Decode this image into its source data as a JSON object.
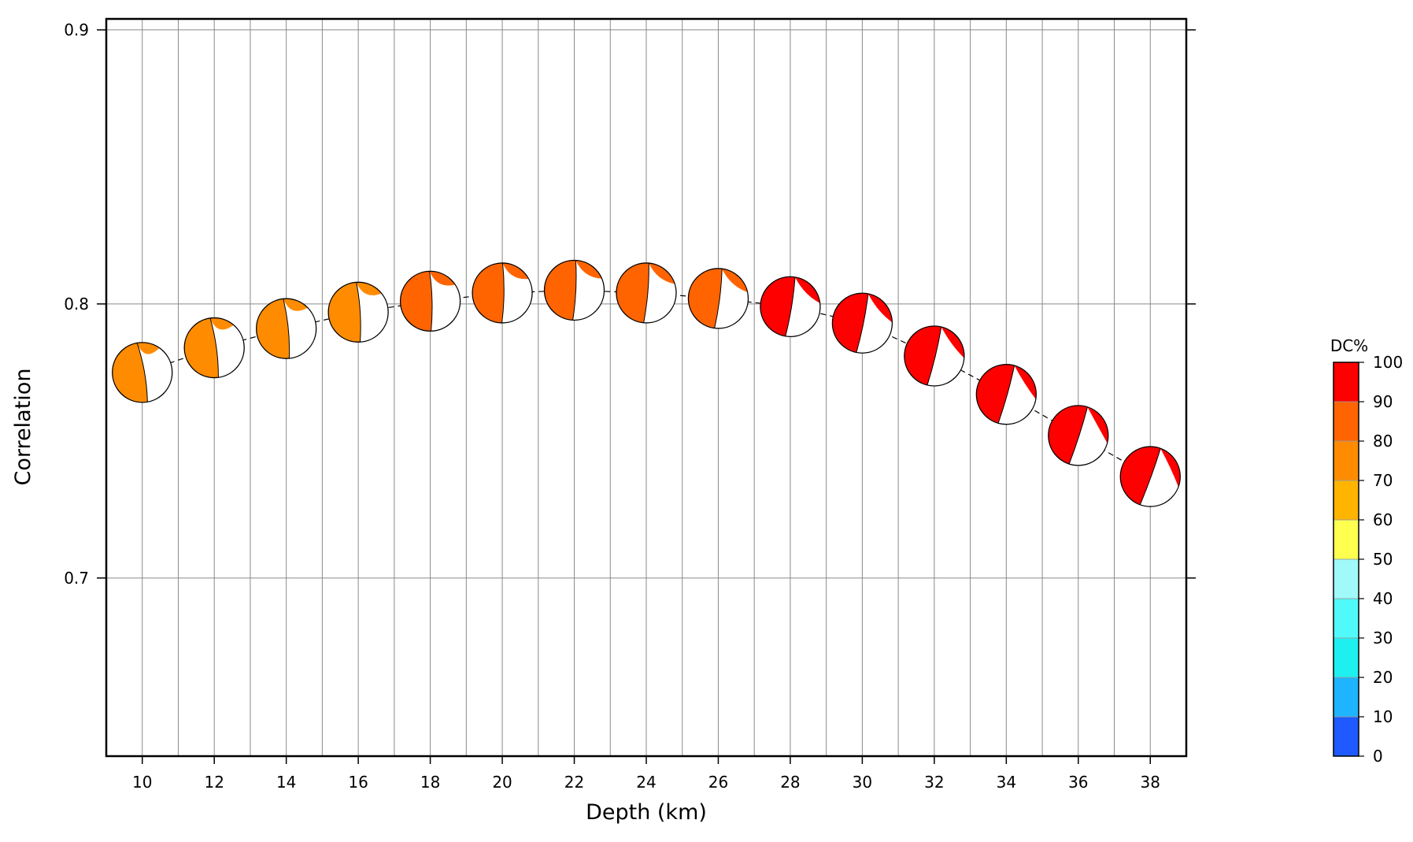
{
  "chart_data": {
    "type": "scatter",
    "xlabel": "Depth (km)",
    "ylabel": "Correlation",
    "xlim": [
      9,
      39
    ],
    "ylim": [
      0.635,
      0.904
    ],
    "x_ticks": [
      "10",
      "12",
      "14",
      "16",
      "18",
      "20",
      "22",
      "24",
      "26",
      "28",
      "30",
      "32",
      "34",
      "36",
      "38"
    ],
    "y_ticks": [
      "0.7",
      "0.8",
      "0.9"
    ],
    "grid": true,
    "points": [
      {
        "depth": 10,
        "correlation": 0.775,
        "dc": 75
      },
      {
        "depth": 12,
        "correlation": 0.784,
        "dc": 75
      },
      {
        "depth": 14,
        "correlation": 0.791,
        "dc": 75
      },
      {
        "depth": 16,
        "correlation": 0.797,
        "dc": 75
      },
      {
        "depth": 18,
        "correlation": 0.801,
        "dc": 85
      },
      {
        "depth": 20,
        "correlation": 0.804,
        "dc": 85
      },
      {
        "depth": 22,
        "correlation": 0.805,
        "dc": 85
      },
      {
        "depth": 24,
        "correlation": 0.804,
        "dc": 85
      },
      {
        "depth": 26,
        "correlation": 0.802,
        "dc": 85
      },
      {
        "depth": 28,
        "correlation": 0.799,
        "dc": 95
      },
      {
        "depth": 30,
        "correlation": 0.793,
        "dc": 95
      },
      {
        "depth": 32,
        "correlation": 0.781,
        "dc": 95
      },
      {
        "depth": 34,
        "correlation": 0.767,
        "dc": 95
      },
      {
        "depth": 36,
        "correlation": 0.752,
        "dc": 95
      },
      {
        "depth": 38,
        "correlation": 0.737,
        "dc": 95
      }
    ],
    "colorbar": {
      "title": "DC%",
      "ticks": [
        "0",
        "10",
        "20",
        "30",
        "40",
        "50",
        "60",
        "70",
        "80",
        "90",
        "100"
      ],
      "bins": [
        "#1e5aff",
        "#1eb4ff",
        "#1ef0f0",
        "#50fafa",
        "#a0fafa",
        "#ffff50",
        "#ffb400",
        "#ff8c00",
        "#ff6400",
        "#ff0000"
      ]
    },
    "colors": {
      "dc_70_80": "#ff8c00",
      "dc_80_90": "#ff6400",
      "dc_90_100": "#ff0000"
    }
  }
}
